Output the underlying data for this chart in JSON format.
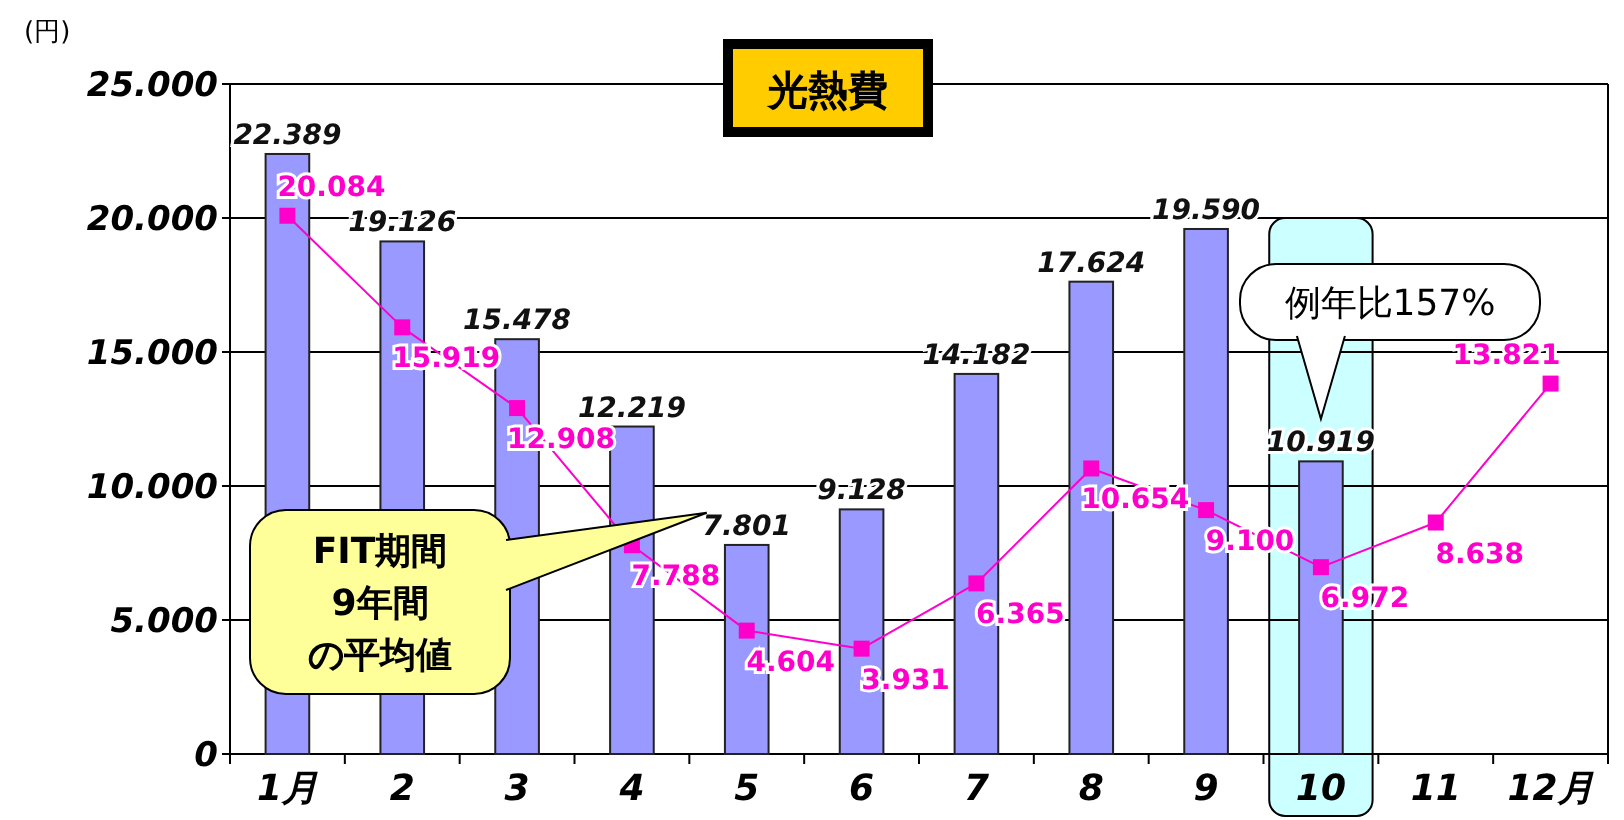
{
  "chart_data": {
    "type": "bar",
    "title": "光熱費",
    "ylabel": "(円)",
    "categories": [
      "1月",
      "2",
      "3",
      "4",
      "5",
      "6",
      "7",
      "8",
      "9",
      "10",
      "11",
      "12月"
    ],
    "series": [
      {
        "color": "#9999ff",
        "values": [
          22389,
          19126,
          15478,
          12219,
          7801,
          9128,
          14182,
          17624,
          19590,
          10919,
          null,
          null
        ],
        "value_labels": [
          "22.389",
          "19.126",
          "15.478",
          "12.219",
          "7.801",
          "9.128",
          "14.182",
          "17.624",
          "19.590",
          "10.919",
          null,
          null
        ]
      },
      {
        "type": "line",
        "color": "#ff00cc",
        "marker": "square",
        "values": [
          20084,
          15919,
          12908,
          7788,
          4604,
          3931,
          6365,
          10654,
          9100,
          6972,
          8638,
          13821
        ],
        "value_labels": [
          "20.084",
          "15.919",
          "12.908",
          "7.788",
          "4.604",
          "3.931",
          "6.365",
          "10.654",
          "9.100",
          "6.972",
          "8.638",
          "13.821"
        ]
      }
    ],
    "ylim": [
      0,
      25000
    ],
    "yticks": [
      0,
      {
        "value": 5000,
        "label": "5.000"
      },
      {
        "value": 10000,
        "label": "10.000"
      },
      {
        "value": 15000,
        "label": "15.000"
      },
      {
        "value": 20000,
        "label": "20.000"
      },
      {
        "value": 25000,
        "label": "25.000"
      }
    ],
    "grid": "y",
    "bands": [
      {
        "axis": "x",
        "from": "10",
        "to": "10",
        "color": "#ccffff"
      }
    ],
    "annotations": [
      "FIT期間9年間の平均値",
      "例年比157%"
    ]
  }
}
